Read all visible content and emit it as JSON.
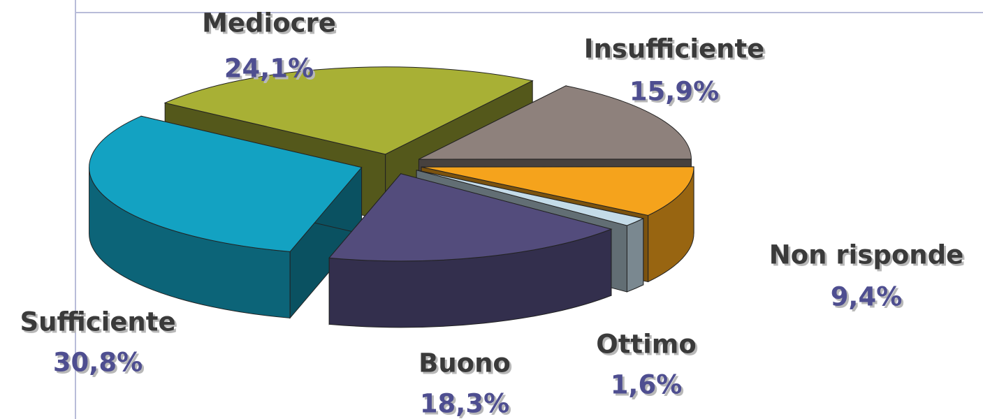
{
  "chart_data": {
    "type": "pie",
    "categories": [
      "Mediocre",
      "Insufficiente",
      "Non risponde",
      "Ottimo",
      "Buono",
      "Sufficiente"
    ],
    "values": [
      24.1,
      15.9,
      9.4,
      1.6,
      18.3,
      30.8
    ],
    "value_labels": [
      "24,1%",
      "15,9%",
      "9,4%",
      "1,6%",
      "18,3%",
      "30,8%"
    ],
    "colors": [
      "#a8b035",
      "#8e817c",
      "#f5a31c",
      "#c4dbe8",
      "#534c7c",
      "#13a2c2"
    ]
  }
}
